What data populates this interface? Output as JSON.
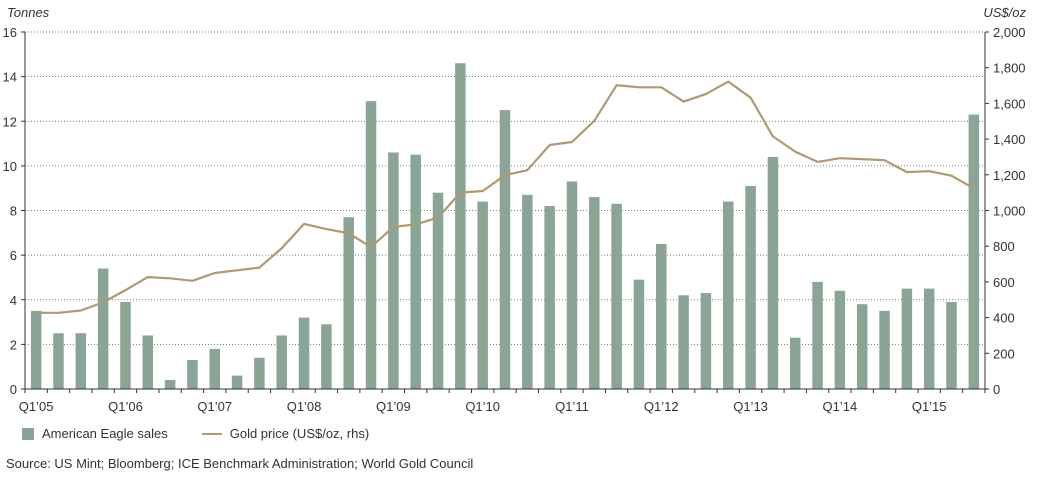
{
  "chart_data": {
    "type": "bar",
    "left_axis_title": "Tonnes",
    "right_axis_title": "US$/oz",
    "y_left": {
      "min": 0,
      "max": 16,
      "ticks": [
        "0",
        "2",
        "4",
        "6",
        "8",
        "10",
        "12",
        "14",
        "16"
      ]
    },
    "y_right": {
      "min": 0,
      "max": 2000,
      "ticks": [
        "0",
        "200",
        "400",
        "600",
        "800",
        "1,000",
        "1,200",
        "1,400",
        "1,600",
        "1,800",
        "2,000"
      ]
    },
    "x_tick_labels": [
      {
        "index": 0,
        "label": "Q1’05"
      },
      {
        "index": 4,
        "label": "Q1’06"
      },
      {
        "index": 8,
        "label": "Q1’07"
      },
      {
        "index": 12,
        "label": "Q1’08"
      },
      {
        "index": 16,
        "label": "Q1’09"
      },
      {
        "index": 20,
        "label": "Q1’10"
      },
      {
        "index": 24,
        "label": "Q1’11"
      },
      {
        "index": 28,
        "label": "Q1’12"
      },
      {
        "index": 32,
        "label": "Q1’13"
      },
      {
        "index": 36,
        "label": "Q1’14"
      },
      {
        "index": 40,
        "label": "Q1’15"
      }
    ],
    "grid": "dotted horizontal",
    "legend_placement": "bottom-left",
    "series": [
      {
        "name": "American Eagle sales",
        "type": "bar",
        "axis": "left",
        "color": "#8aa496",
        "values": [
          3.5,
          2.5,
          2.5,
          5.4,
          3.9,
          2.4,
          0.4,
          1.3,
          1.8,
          0.6,
          1.4,
          2.4,
          3.2,
          2.9,
          7.7,
          12.9,
          10.6,
          10.5,
          8.8,
          14.6,
          8.4,
          12.5,
          8.7,
          8.2,
          9.3,
          8.6,
          8.3,
          4.9,
          6.5,
          4.2,
          4.3,
          8.4,
          9.1,
          10.4,
          2.3,
          4.8,
          4.4,
          3.8,
          3.5,
          4.5,
          4.5,
          3.9,
          12.3
        ]
      },
      {
        "name": "Gold price (US$/oz, rhs)",
        "type": "line",
        "axis": "right",
        "color": "#ae9a6e",
        "values": [
          427,
          427,
          440,
          485,
          554,
          627,
          620,
          606,
          650,
          665,
          680,
          788,
          925,
          896,
          872,
          795,
          908,
          922,
          960,
          1100,
          1109,
          1198,
          1226,
          1367,
          1384,
          1502,
          1702,
          1690,
          1690,
          1610,
          1652,
          1722,
          1632,
          1415,
          1330,
          1272,
          1293,
          1288,
          1282,
          1215,
          1220,
          1195,
          1124
        ]
      }
    ]
  },
  "legend": {
    "bar_label": "American Eagle sales",
    "line_label": "Gold price (US$/oz, rhs)"
  },
  "source": "Source: US Mint; Bloomberg; ICE Benchmark Administration; World Gold Council"
}
